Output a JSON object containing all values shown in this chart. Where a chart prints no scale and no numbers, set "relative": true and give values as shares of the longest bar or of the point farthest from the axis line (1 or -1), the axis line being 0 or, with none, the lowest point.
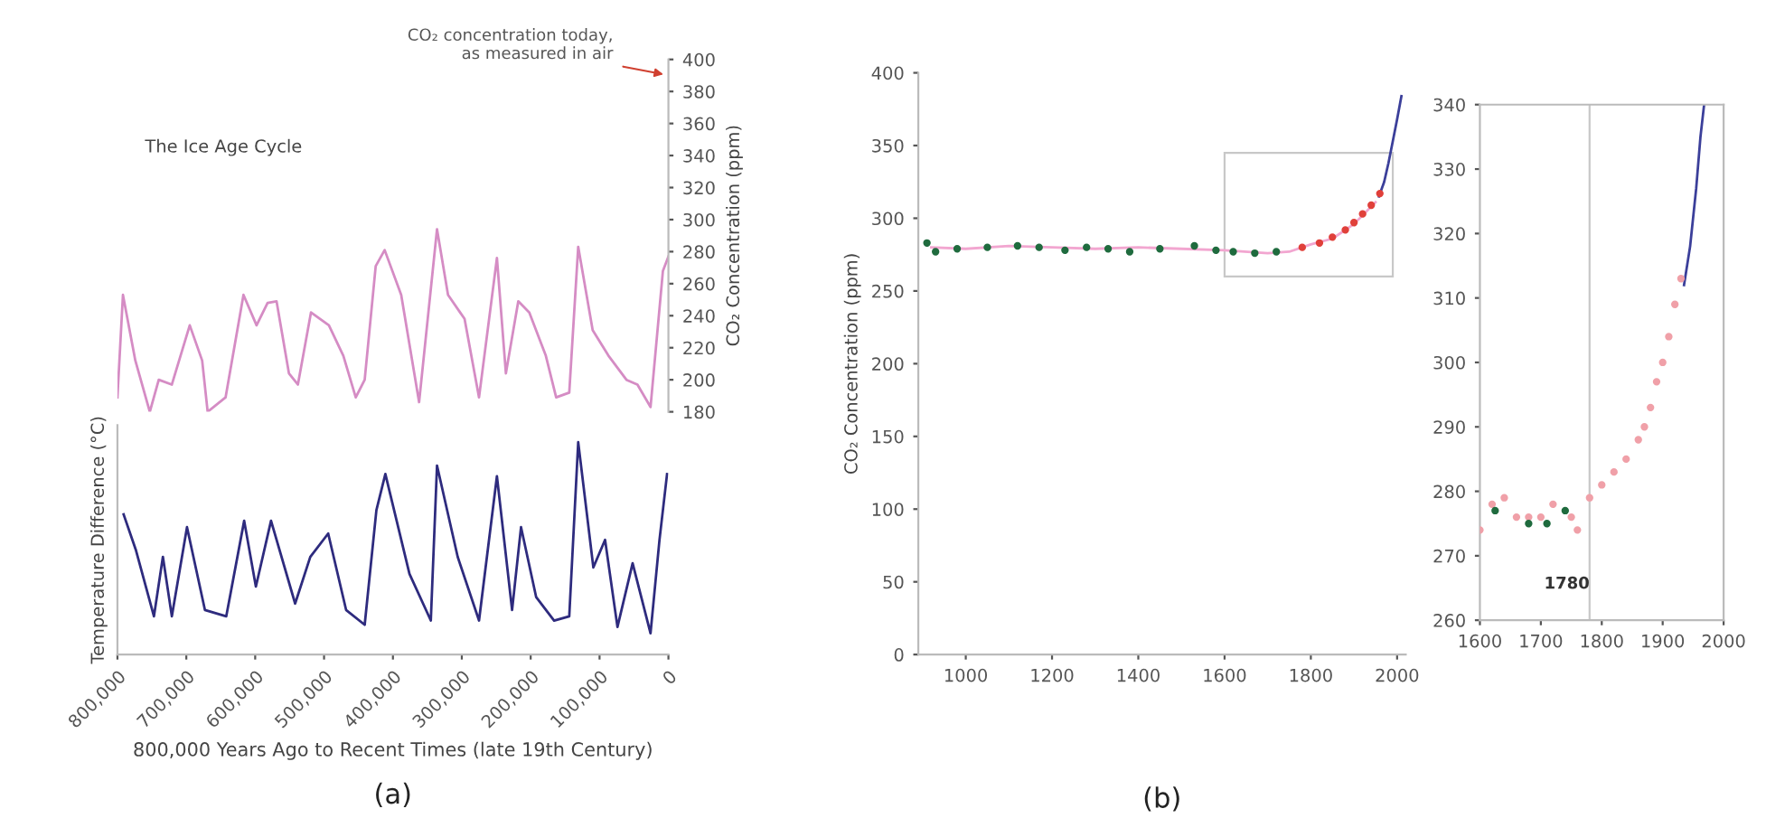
{
  "chart_data": [
    {
      "type": "line",
      "ylabel": "CO₂ Concentration (ppm)",
      "xlim": [
        800000,
        0
      ],
      "ylim": [
        180,
        400
      ],
      "yticks": [
        180,
        200,
        220,
        240,
        260,
        280,
        300,
        320,
        340,
        360,
        380,
        400
      ],
      "tick_labels": "y",
      "annotations": [
        "The Ice Age Cycle",
        "CO₂ concentration today,\nas measured in air",
        "(a)"
      ],
      "series": [
        {
          "color": "#d58cc4",
          "x": [
            800000,
            792000,
            774000,
            753000,
            740000,
            721000,
            695000,
            677000,
            669000,
            643000,
            617000,
            598000,
            582000,
            569000,
            551000,
            538000,
            519000,
            493000,
            472000,
            454000,
            441000,
            425000,
            412000,
            388000,
            362000,
            336000,
            320000,
            296000,
            275000,
            249000,
            236000,
            218000,
            202000,
            178000,
            163000,
            144000,
            131000,
            110000,
            87000,
            61000,
            45000,
            26000,
            8000,
            0
          ],
          "values": [
            189,
            253,
            212,
            180,
            200,
            197,
            234,
            212,
            180,
            189,
            253,
            234,
            248,
            249,
            204,
            197,
            242,
            234,
            215,
            189,
            200,
            271,
            281,
            253,
            186,
            294,
            253,
            238,
            189,
            276,
            204,
            249,
            242,
            215,
            189,
            192,
            283,
            231,
            215,
            200,
            197,
            183,
            268,
            277
          ]
        }
      ]
    },
    {
      "type": "line",
      "relative": true,
      "ylabel": "Temperature Difference (°C)",
      "xlabel": "800,000 Years Ago to Recent Times (late 19th Century)",
      "xlim": [
        800000,
        0
      ],
      "tick_labels": "x",
      "xticks": [
        {
          "value": 800000,
          "label": "800,000"
        },
        {
          "value": 700000,
          "label": "700,000"
        },
        {
          "value": 600000,
          "label": "600,000"
        },
        {
          "value": 500000,
          "label": "500,000"
        },
        {
          "value": 400000,
          "label": "400,000"
        },
        {
          "value": 300000,
          "label": "300,000"
        },
        {
          "value": 200000,
          "label": "200,000"
        },
        {
          "value": 100000,
          "label": "100,000"
        },
        0
      ],
      "series": [
        {
          "color": "#2e2b7e",
          "x": [
            791000,
            773000,
            747000,
            734000,
            721000,
            699000,
            673000,
            642000,
            616000,
            599000,
            577000,
            542000,
            520000,
            494000,
            468000,
            441000,
            424000,
            411000,
            376000,
            345000,
            336000,
            306000,
            275000,
            249000,
            227000,
            214000,
            192000,
            166000,
            144000,
            131000,
            109000,
            92000,
            74000,
            52000,
            26000,
            13000,
            2000
          ],
          "values": [
            0.66,
            0.49,
            0.18,
            0.46,
            0.18,
            0.6,
            0.21,
            0.18,
            0.63,
            0.32,
            0.63,
            0.24,
            0.46,
            0.57,
            0.21,
            0.14,
            0.68,
            0.85,
            0.38,
            0.16,
            0.89,
            0.46,
            0.16,
            0.84,
            0.21,
            0.6,
            0.27,
            0.16,
            0.18,
            1,
            0.41,
            0.54,
            0.13,
            0.43,
            0.1,
            0.54,
            0.85
          ]
        }
      ]
    },
    {
      "type": "line",
      "ylabel": "CO₂ Concentration (ppm)",
      "xlim": [
        890,
        2020
      ],
      "xticks": [
        1000,
        1200,
        1400,
        1600,
        1800,
        2000
      ],
      "ylim": [
        0,
        400
      ],
      "yticks": [
        0,
        50,
        100,
        150,
        200,
        250,
        300,
        350,
        400
      ],
      "annotations": [
        "(b)"
      ],
      "series": [
        {
          "type": "line",
          "color": "#f2a6d0",
          "x": [
            920,
            1000,
            1100,
            1200,
            1300,
            1400,
            1500,
            1600,
            1700,
            1750,
            1800,
            1850,
            1900,
            1950
          ],
          "values": [
            280,
            279,
            281,
            280,
            279,
            280,
            279,
            278,
            276,
            277,
            282,
            286,
            296,
            311
          ]
        },
        {
          "type": "scatter",
          "marker": "circle",
          "color": "#1f6b3e",
          "x": [
            910,
            930,
            980,
            1050,
            1120,
            1170,
            1230,
            1280,
            1330,
            1380,
            1450,
            1530,
            1580,
            1620,
            1670,
            1720
          ],
          "values": [
            283,
            277,
            279,
            280,
            281,
            280,
            278,
            280,
            279,
            277,
            279,
            281,
            278,
            277,
            276,
            277
          ]
        },
        {
          "type": "scatter",
          "marker": "circle",
          "color": "#e0403a",
          "x": [
            1780,
            1820,
            1850,
            1880,
            1900,
            1920,
            1940,
            1960
          ],
          "values": [
            280,
            283,
            287,
            292,
            297,
            303,
            309,
            317
          ]
        },
        {
          "type": "line",
          "color": "#3b3f9a",
          "x": [
            1958,
            1970,
            1980,
            1990,
            2000,
            2010
          ],
          "values": [
            315,
            325,
            338,
            353,
            368,
            384
          ]
        }
      ]
    },
    {
      "type": "line",
      "xlim": [
        1600,
        2000
      ],
      "xticks": [
        1600,
        1700,
        1800,
        1900,
        2000
      ],
      "ylim": [
        260,
        340
      ],
      "yticks": [
        260,
        270,
        280,
        290,
        300,
        310,
        320,
        330,
        340
      ],
      "ref_lines": [
        {
          "axis": "x",
          "value": 1780,
          "label": "1780",
          "color": "#c8c8c8"
        }
      ],
      "series": [
        {
          "type": "scatter",
          "marker": "circle",
          "color": "#f0a0a8",
          "x": [
            1600,
            1620,
            1640,
            1660,
            1680,
            1700,
            1720,
            1750,
            1760,
            1780,
            1800,
            1820,
            1840,
            1860,
            1870,
            1880,
            1890,
            1900,
            1910,
            1920,
            1930
          ],
          "values": [
            274,
            278,
            279,
            276,
            276,
            276,
            278,
            276,
            274,
            279,
            281,
            283,
            285,
            288,
            290,
            293,
            297,
            300,
            304,
            309,
            313
          ]
        },
        {
          "type": "scatter",
          "marker": "circle",
          "color": "#1f6b3e",
          "x": [
            1625,
            1680,
            1710,
            1740
          ],
          "values": [
            277,
            275,
            275,
            277
          ]
        },
        {
          "type": "line",
          "color": "#3b3f9a",
          "x": [
            1935,
            1945,
            1955,
            1962,
            1968
          ],
          "values": [
            312,
            318,
            327,
            335,
            340
          ]
        }
      ]
    }
  ]
}
